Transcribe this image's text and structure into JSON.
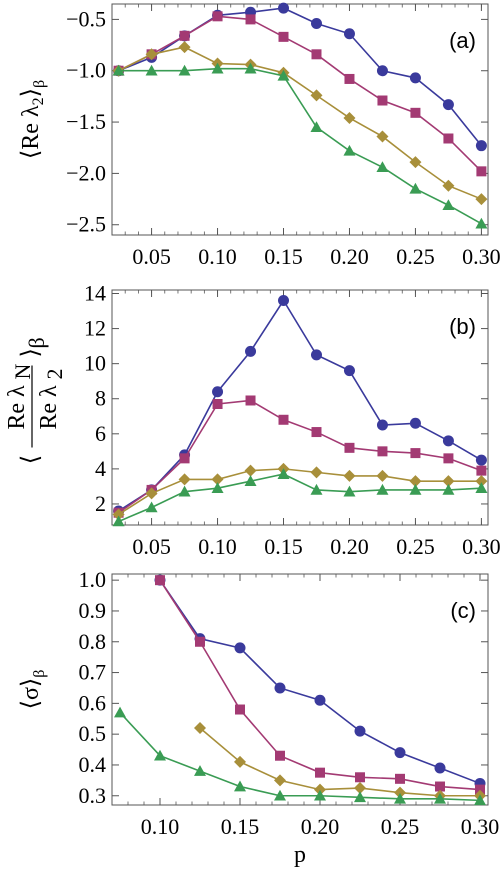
{
  "figure": {
    "xlabel": "p"
  },
  "styles": {
    "series_colors": [
      "#3a3a9c",
      "#a33a73",
      "#a88f3a",
      "#3a9c54"
    ],
    "series_markers": [
      "circle",
      "square",
      "diamond",
      "triangle"
    ]
  },
  "chart_data": [
    {
      "type": "line",
      "panel_label": "(a)",
      "ylabel_parts": {
        "open": "⟨",
        "main": "Re λ",
        "sub": "2",
        "close": "⟩",
        "beta": "β"
      },
      "xlim": [
        0.02,
        0.305
      ],
      "ylim": [
        -2.6,
        -0.35
      ],
      "xticks": [
        0.05,
        0.1,
        0.15,
        0.2,
        0.25,
        0.3
      ],
      "xtick_labels": [
        "0.05",
        "0.10",
        "0.15",
        "0.20",
        "0.25",
        "0.30"
      ],
      "yticks": [
        -0.5,
        -1.0,
        -1.5,
        -2.0,
        -2.5
      ],
      "ytick_labels": [
        "−0.5",
        "−1.0",
        "−1.5",
        "−2.0",
        "−2.5"
      ],
      "series": [
        {
          "x": [
            0.025,
            0.05,
            0.075,
            0.1,
            0.125,
            0.15,
            0.175,
            0.2,
            0.225,
            0.25,
            0.275,
            0.3
          ],
          "y": [
            -1.0,
            -0.87,
            -0.66,
            -0.46,
            -0.43,
            -0.39,
            -0.54,
            -0.64,
            -1.0,
            -1.07,
            -1.33,
            -1.73
          ]
        },
        {
          "x": [
            0.025,
            0.05,
            0.075,
            0.1,
            0.125,
            0.15,
            0.175,
            0.2,
            0.225,
            0.25,
            0.275,
            0.3
          ],
          "y": [
            -1.0,
            -0.84,
            -0.66,
            -0.47,
            -0.5,
            -0.67,
            -0.84,
            -1.08,
            -1.29,
            -1.41,
            -1.66,
            -1.98
          ]
        },
        {
          "x": [
            0.025,
            0.05,
            0.075,
            0.1,
            0.125,
            0.15,
            0.175,
            0.2,
            0.225,
            0.25,
            0.275,
            0.3
          ],
          "y": [
            -1.0,
            -0.84,
            -0.77,
            -0.93,
            -0.94,
            -1.02,
            -1.24,
            -1.46,
            -1.64,
            -1.89,
            -2.12,
            -2.25
          ]
        },
        {
          "x": [
            0.025,
            0.05,
            0.075,
            0.1,
            0.125,
            0.15,
            0.175,
            0.2,
            0.225,
            0.25,
            0.275,
            0.3
          ],
          "y": [
            -1.0,
            -1.0,
            -1.0,
            -0.98,
            -0.98,
            -1.05,
            -1.55,
            -1.78,
            -1.94,
            -2.15,
            -2.31,
            -2.49
          ]
        }
      ]
    },
    {
      "type": "line",
      "panel_label": "(b)",
      "ylabel_parts": {
        "open": "⟨",
        "num": "Re λ",
        "num_sub": "N",
        "den": "Re λ",
        "den_sub": "2",
        "close": "⟩",
        "beta": "β"
      },
      "xlim": [
        0.02,
        0.305
      ],
      "ylim": [
        0.8,
        14.2
      ],
      "xticks": [
        0.05,
        0.1,
        0.15,
        0.2,
        0.25,
        0.3
      ],
      "xtick_labels": [
        "0.05",
        "0.10",
        "0.15",
        "0.20",
        "0.25",
        "0.30"
      ],
      "yticks": [
        2,
        4,
        6,
        8,
        10,
        12,
        14
      ],
      "ytick_labels": [
        "2",
        "4",
        "6",
        "8",
        "10",
        "12",
        "14"
      ],
      "series": [
        {
          "x": [
            0.025,
            0.05,
            0.075,
            0.1,
            0.125,
            0.15,
            0.175,
            0.2,
            0.225,
            0.25,
            0.275,
            0.3
          ],
          "y": [
            1.6,
            2.8,
            4.8,
            8.4,
            10.7,
            13.6,
            10.5,
            9.6,
            6.5,
            6.6,
            5.6,
            4.5
          ]
        },
        {
          "x": [
            0.025,
            0.05,
            0.075,
            0.1,
            0.125,
            0.15,
            0.175,
            0.2,
            0.225,
            0.25,
            0.275,
            0.3
          ],
          "y": [
            1.5,
            2.8,
            4.6,
            7.7,
            7.9,
            6.8,
            6.1,
            5.2,
            5.0,
            4.9,
            4.6,
            3.9
          ]
        },
        {
          "x": [
            0.025,
            0.05,
            0.075,
            0.1,
            0.125,
            0.15,
            0.175,
            0.2,
            0.225,
            0.25,
            0.275,
            0.3
          ],
          "y": [
            1.4,
            2.6,
            3.4,
            3.4,
            3.9,
            4.0,
            3.8,
            3.6,
            3.6,
            3.3,
            3.3,
            3.3
          ]
        },
        {
          "x": [
            0.025,
            0.05,
            0.075,
            0.1,
            0.125,
            0.15,
            0.175,
            0.2,
            0.225,
            0.25,
            0.275,
            0.3
          ],
          "y": [
            1.0,
            1.8,
            2.7,
            2.9,
            3.3,
            3.7,
            2.8,
            2.7,
            2.8,
            2.8,
            2.8,
            2.9
          ]
        }
      ]
    },
    {
      "type": "line",
      "panel_label": "(c)",
      "ylabel_parts": {
        "open": "⟨",
        "main": "σ",
        "close": "⟩",
        "beta": "β"
      },
      "xlim": [
        0.07,
        0.305
      ],
      "ylim": [
        0.27,
        1.02
      ],
      "xticks": [
        0.1,
        0.15,
        0.2,
        0.25,
        0.3
      ],
      "xtick_labels": [
        "0.10",
        "0.15",
        "0.20",
        "0.25",
        "0.30"
      ],
      "yticks": [
        0.3,
        0.4,
        0.5,
        0.6,
        0.7,
        0.8,
        0.9,
        1.0
      ],
      "ytick_labels": [
        "0.3",
        "0.4",
        "0.5",
        "0.6",
        "0.7",
        "0.8",
        "0.9",
        "1.0"
      ],
      "series": [
        {
          "x": [
            0.1,
            0.125,
            0.15,
            0.175,
            0.2,
            0.225,
            0.25,
            0.275,
            0.3
          ],
          "y": [
            1.0,
            0.81,
            0.78,
            0.65,
            0.61,
            0.51,
            0.44,
            0.39,
            0.34
          ]
        },
        {
          "x": [
            0.1,
            0.125,
            0.15,
            0.175,
            0.2,
            0.225,
            0.25,
            0.275,
            0.3
          ],
          "y": [
            1.0,
            0.8,
            0.58,
            0.43,
            0.375,
            0.36,
            0.355,
            0.33,
            0.32
          ]
        },
        {
          "x": [
            0.125,
            0.15,
            0.175,
            0.2,
            0.225,
            0.25,
            0.275,
            0.3
          ],
          "y": [
            0.52,
            0.41,
            0.35,
            0.32,
            0.325,
            0.31,
            0.3,
            0.3
          ]
        },
        {
          "x": [
            0.075,
            0.1,
            0.125,
            0.15,
            0.175,
            0.2,
            0.225,
            0.25,
            0.275,
            0.3
          ],
          "y": [
            0.57,
            0.43,
            0.38,
            0.33,
            0.3,
            0.3,
            0.295,
            0.29,
            0.29,
            0.285
          ]
        }
      ]
    }
  ]
}
